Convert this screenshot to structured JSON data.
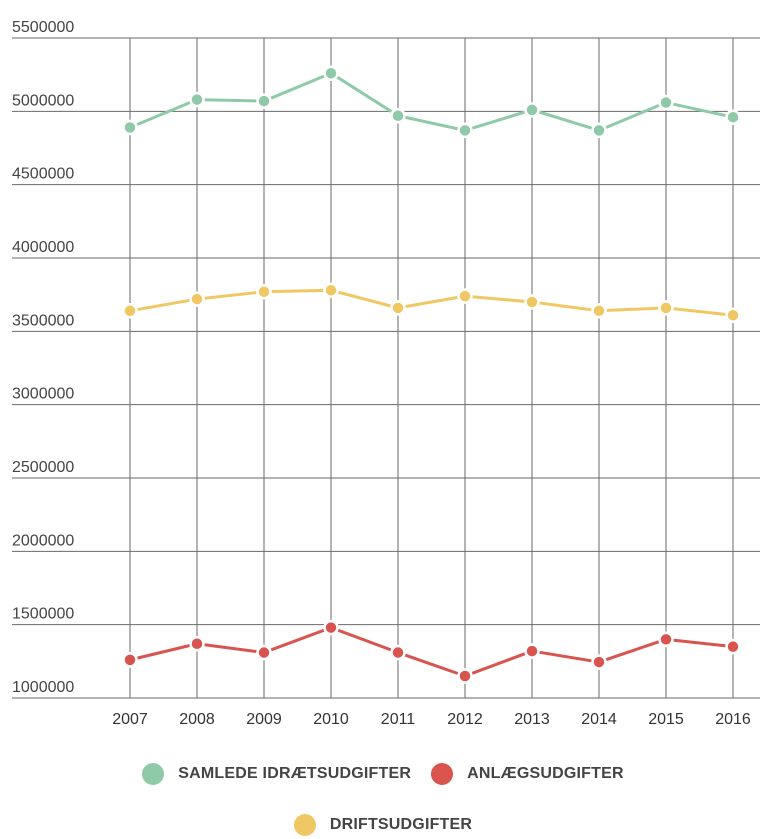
{
  "chart_data": {
    "type": "line",
    "x": [
      "2007",
      "2008",
      "2009",
      "2010",
      "2011",
      "2012",
      "2013",
      "2014",
      "2015",
      "2016"
    ],
    "ylim": [
      1000000,
      5500000
    ],
    "yticks": [
      "1000000",
      "1500000",
      "2000000",
      "2500000",
      "3000000",
      "3500000",
      "4000000",
      "4500000",
      "5000000",
      "5500000"
    ],
    "grid": true,
    "legend_position": "bottom",
    "series": [
      {
        "name": "SAMLEDE IDRÆTSUDGIFTER",
        "color": "#8fcaa8",
        "values": [
          4890000,
          5080000,
          5070000,
          5260000,
          4970000,
          4870000,
          5010000,
          4870000,
          5060000,
          4960000
        ]
      },
      {
        "name": "ANLÆGSUDGIFTER",
        "color": "#d9534f",
        "values": [
          1260000,
          1370000,
          1310000,
          1480000,
          1310000,
          1150000,
          1320000,
          1245000,
          1400000,
          1350000
        ]
      },
      {
        "name": "DRIFTSUDGIFTER",
        "color": "#efc863",
        "values": [
          3640000,
          3720000,
          3770000,
          3780000,
          3660000,
          3740000,
          3700000,
          3640000,
          3660000,
          3610000
        ]
      }
    ]
  }
}
